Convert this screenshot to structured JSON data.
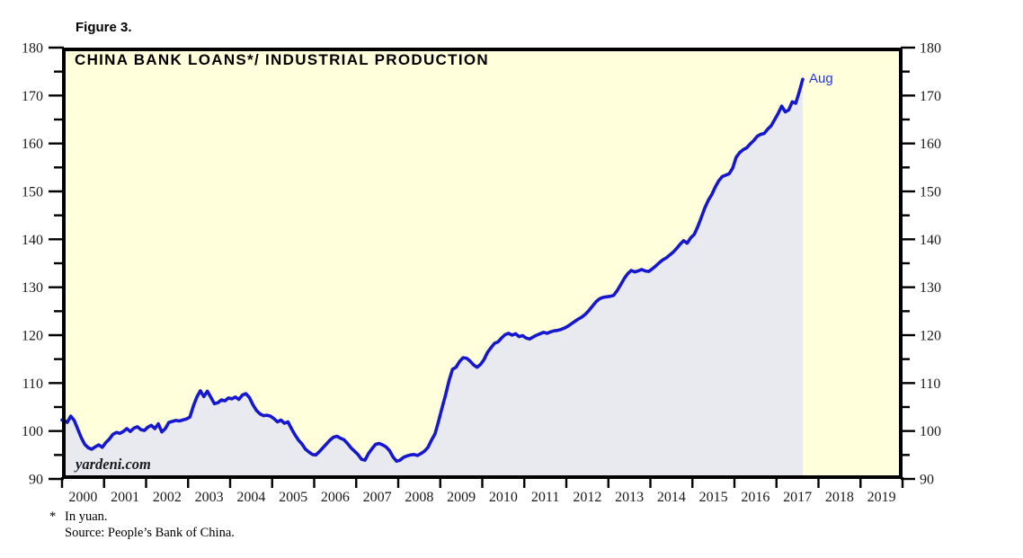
{
  "page": {
    "figure_label": "Figure 3."
  },
  "branding": {
    "text": "yardeni.com"
  },
  "footnote": {
    "marker": "*",
    "line1": "In yuan.",
    "line2": "Source: People’s Bank of China."
  },
  "chart_data": {
    "type": "area",
    "title": "CHINA BANK LOANS*/ INDUSTRIAL PRODUCTION",
    "end_label": "Aug",
    "grid": false,
    "legend_position": "none",
    "x_axis": {
      "start_year": 2000,
      "end_year": 2020,
      "tick_years": [
        2000,
        2001,
        2002,
        2003,
        2004,
        2005,
        2006,
        2007,
        2008,
        2009,
        2010,
        2011,
        2012,
        2013,
        2014,
        2015,
        2016,
        2017,
        2018,
        2019
      ]
    },
    "y_axis": {
      "range": [
        90,
        180
      ],
      "major_ticks": [
        90,
        100,
        110,
        120,
        130,
        140,
        150,
        160,
        170,
        180
      ],
      "minor_ticks": [
        95,
        105,
        115,
        125,
        135,
        145,
        155,
        165,
        175
      ],
      "sides": "both"
    },
    "series": [
      {
        "name": "China bank loans / industrial production",
        "frequency": "monthly",
        "start": "2000-01",
        "end": "2017-08",
        "values": [
          102.3,
          101.8,
          103.1,
          102.2,
          100.4,
          98.6,
          97.2,
          96.5,
          96.2,
          96.7,
          97.1,
          96.6,
          97.6,
          98.3,
          99.3,
          99.7,
          99.5,
          99.9,
          100.5,
          99.9,
          100.6,
          100.9,
          100.3,
          100.1,
          100.8,
          101.2,
          100.5,
          101.5,
          99.8,
          100.5,
          101.8,
          102.0,
          102.2,
          102.1,
          102.3,
          102.5,
          102.9,
          105.2,
          107.1,
          108.4,
          107.2,
          108.3,
          107.0,
          105.7,
          105.9,
          106.5,
          106.3,
          106.9,
          106.7,
          107.1,
          106.6,
          107.5,
          107.8,
          107.0,
          105.5,
          104.3,
          103.6,
          103.2,
          103.3,
          103.1,
          102.6,
          101.9,
          102.3,
          101.6,
          101.9,
          100.5,
          99.2,
          98.1,
          97.3,
          96.2,
          95.6,
          95.1,
          95.0,
          95.7,
          96.5,
          97.3,
          98.1,
          98.7,
          98.9,
          98.5,
          98.2,
          97.4,
          96.5,
          95.8,
          95.1,
          94.1,
          93.9,
          95.3,
          96.3,
          97.2,
          97.4,
          97.1,
          96.7,
          95.9,
          94.6,
          93.7,
          93.9,
          94.5,
          94.8,
          95.0,
          95.1,
          94.9,
          95.3,
          95.8,
          96.6,
          98.1,
          99.4,
          102.0,
          104.8,
          107.5,
          110.5,
          112.9,
          113.3,
          114.5,
          115.3,
          115.2,
          114.6,
          113.8,
          113.3,
          113.9,
          114.9,
          116.4,
          117.4,
          118.3,
          118.6,
          119.4,
          120.1,
          120.4,
          120.0,
          120.3,
          119.7,
          119.9,
          119.4,
          119.2,
          119.6,
          120.0,
          120.3,
          120.6,
          120.4,
          120.7,
          120.9,
          121.0,
          121.2,
          121.5,
          121.9,
          122.4,
          122.9,
          123.4,
          123.8,
          124.4,
          125.2,
          126.1,
          127.0,
          127.6,
          127.9,
          128.0,
          128.1,
          128.3,
          129.3,
          130.5,
          131.8,
          132.8,
          133.5,
          133.2,
          133.4,
          133.7,
          133.4,
          133.3,
          133.8,
          134.4,
          135.1,
          135.7,
          136.1,
          136.7,
          137.3,
          138.1,
          139.0,
          139.7,
          139.2,
          140.3,
          141.0,
          142.6,
          144.5,
          146.5,
          148.1,
          149.3,
          150.9,
          152.2,
          153.1,
          153.4,
          153.7,
          154.9,
          157.1,
          158.1,
          158.7,
          159.1,
          159.9,
          160.6,
          161.5,
          161.9,
          162.1,
          163.0,
          163.7,
          165.0,
          166.3,
          167.8,
          166.6,
          167.0,
          168.7,
          168.4,
          170.8,
          173.4
        ]
      }
    ],
    "last_point": {
      "period": "Aug 2017",
      "value": 173.4
    },
    "colors": {
      "line": "#1618cf",
      "area_fill": "#e9e9f0",
      "plot_background": "#ffffdb",
      "axis": "#000000",
      "tick_label": "#1a1a1a",
      "end_label": "#2438e0",
      "page_background": "#ffffff"
    }
  }
}
